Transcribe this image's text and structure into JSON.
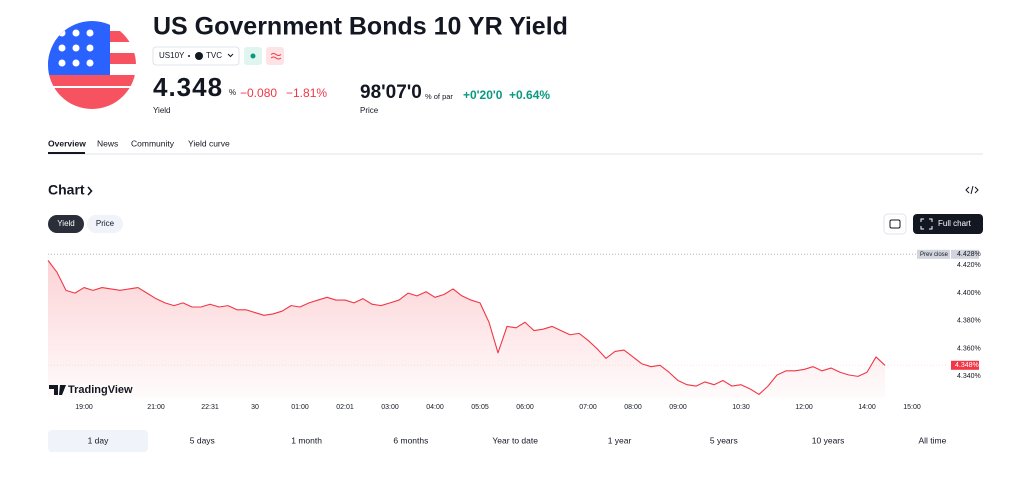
{
  "header": {
    "title": "US Government Bonds 10 YR Yield",
    "symbol": "US10Y",
    "exchange": "TVC",
    "yield": {
      "value": "4.348",
      "unit": "%",
      "change": "−0.080",
      "change_percent": "−1.81%",
      "label": "Yield"
    },
    "price": {
      "value": "98'07'0",
      "unit": "% of par",
      "change": "+0'20'0",
      "change_percent": "+0.64%",
      "label": "Price"
    }
  },
  "tabs": [
    "Overview",
    "News",
    "Community",
    "Yield curve"
  ],
  "chart_section": {
    "title": "Chart",
    "toggles": [
      "Yield",
      "Price"
    ],
    "full_chart": "Full chart",
    "watermark": "TradingView"
  },
  "chart_data": {
    "type": "line",
    "categories": [
      null,
      null,
      null,
      null,
      "19:00",
      null,
      null,
      null,
      null,
      null,
      null,
      null,
      "21:00",
      null,
      null,
      null,
      null,
      null,
      "22:31",
      null,
      null,
      null,
      null,
      "30",
      null,
      null,
      null,
      null,
      "01:00",
      null,
      null,
      null,
      null,
      "02:01",
      null,
      null,
      null,
      null,
      "03:00",
      null,
      null,
      null,
      null,
      "04:00",
      null,
      null,
      null,
      null,
      "05:05",
      null,
      null,
      null,
      null,
      "06:00",
      null,
      null,
      null,
      null,
      null,
      null,
      "07:00",
      null,
      null,
      null,
      null,
      "08:00",
      null,
      null,
      null,
      null,
      "09:00",
      null,
      null,
      null,
      null,
      null,
      null,
      "10:30",
      null,
      null,
      null,
      null,
      null,
      null,
      "12:00",
      null,
      null,
      null,
      null,
      null,
      null,
      "14:00",
      null,
      null,
      null,
      null,
      "15:00",
      null,
      null,
      null
    ],
    "series": [
      {
        "name": "US10Y",
        "color": "#f23645",
        "values": [
          4.4236,
          4.415,
          4.402,
          4.4,
          4.404,
          4.402,
          4.404,
          4.403,
          4.402,
          4.403,
          4.404,
          4.4,
          4.396,
          4.393,
          4.391,
          4.393,
          4.39,
          4.39,
          4.392,
          4.39,
          4.391,
          4.388,
          4.388,
          4.386,
          4.384,
          4.385,
          4.387,
          4.391,
          4.39,
          4.393,
          4.395,
          4.397,
          4.395,
          4.395,
          4.393,
          4.396,
          4.392,
          4.391,
          4.393,
          4.395,
          4.4,
          4.398,
          4.401,
          4.397,
          4.399,
          4.403,
          4.398,
          4.395,
          4.393,
          4.379,
          4.357,
          4.376,
          4.375,
          4.379,
          4.373,
          4.374,
          4.376,
          4.373,
          4.37,
          4.371,
          4.366,
          4.36,
          4.353,
          4.358,
          4.359,
          4.354,
          4.349,
          4.347,
          4.348,
          4.343,
          4.337,
          4.334,
          4.333,
          4.336,
          4.334,
          4.337,
          4.333,
          4.334,
          4.331,
          4.327,
          4.333,
          4.341,
          4.344,
          4.344,
          4.345,
          4.347,
          4.344,
          4.346,
          4.343,
          4.341,
          4.34,
          4.343,
          4.354,
          4.348,
          null,
          null,
          null,
          null,
          null,
          null
        ]
      }
    ],
    "ylim": [
      4.325,
      4.43
    ],
    "yticks": [
      {
        "value": 4.42,
        "label": "4.420%"
      },
      {
        "value": 4.4,
        "label": "4.400%"
      },
      {
        "value": 4.38,
        "label": "4.380%"
      },
      {
        "value": 4.36,
        "label": "4.360%"
      },
      {
        "value": 4.34,
        "label": "4.340%"
      }
    ],
    "prev_close": {
      "name": "Prev close",
      "value": 4.428,
      "label": "4.428%"
    },
    "last": {
      "value": 4.348,
      "label": "4.348%"
    },
    "grid": false
  },
  "ranges": [
    "1 day",
    "5 days",
    "1 month",
    "6 months",
    "Year to date",
    "1 year",
    "5 years",
    "10 years",
    "All time"
  ]
}
